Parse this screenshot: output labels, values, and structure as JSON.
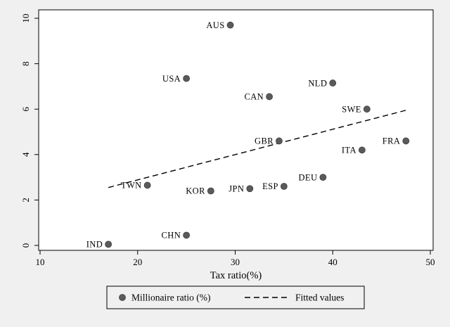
{
  "chart_data": {
    "type": "scatter",
    "title": "",
    "xlabel": "Tax ratio(%)",
    "ylabel": "",
    "xlim": [
      10,
      50
    ],
    "ylim": [
      0,
      10
    ],
    "xticks": [
      10,
      20,
      30,
      40,
      50
    ],
    "yticks": [
      0,
      2,
      4,
      6,
      8,
      10
    ],
    "grid": false,
    "legend_position": "bottom-center",
    "series": [
      {
        "name": "Millionaire ratio (%)",
        "marker": "circle",
        "points": [
          {
            "label": "IND",
            "x": 17,
            "y": 0.05
          },
          {
            "label": "CHN",
            "x": 25,
            "y": 0.45
          },
          {
            "label": "TWN",
            "x": 21,
            "y": 2.65
          },
          {
            "label": "KOR",
            "x": 27.5,
            "y": 2.4
          },
          {
            "label": "JPN",
            "x": 31.5,
            "y": 2.5
          },
          {
            "label": "ESP",
            "x": 35,
            "y": 2.6
          },
          {
            "label": "DEU",
            "x": 39,
            "y": 3.0
          },
          {
            "label": "GBR",
            "x": 34.5,
            "y": 4.6
          },
          {
            "label": "ITA",
            "x": 43,
            "y": 4.2
          },
          {
            "label": "FRA",
            "x": 47.5,
            "y": 4.6
          },
          {
            "label": "SWE",
            "x": 43.5,
            "y": 6.0
          },
          {
            "label": "CAN",
            "x": 33.5,
            "y": 6.55
          },
          {
            "label": "NLD",
            "x": 40,
            "y": 7.15
          },
          {
            "label": "USA",
            "x": 25,
            "y": 7.35
          },
          {
            "label": "AUS",
            "x": 29.5,
            "y": 9.7
          }
        ]
      }
    ],
    "fitted_line": {
      "name": "Fitted values",
      "style": "dashed",
      "x_start": 17,
      "y_start": 2.55,
      "x_end": 47.5,
      "y_end": 5.95
    },
    "legend": {
      "items": [
        {
          "marker": "dot",
          "label": "Millionaire ratio (%)"
        },
        {
          "marker": "dashed-line",
          "label": "Fitted values"
        }
      ]
    },
    "colors": {
      "background": "#f0f0f0",
      "plot_background": "#ffffff",
      "marker": "#5a5a5a",
      "marker_outline": "#3f3f3f",
      "line": "#000000",
      "text": "#000000",
      "border": "#000000"
    }
  }
}
